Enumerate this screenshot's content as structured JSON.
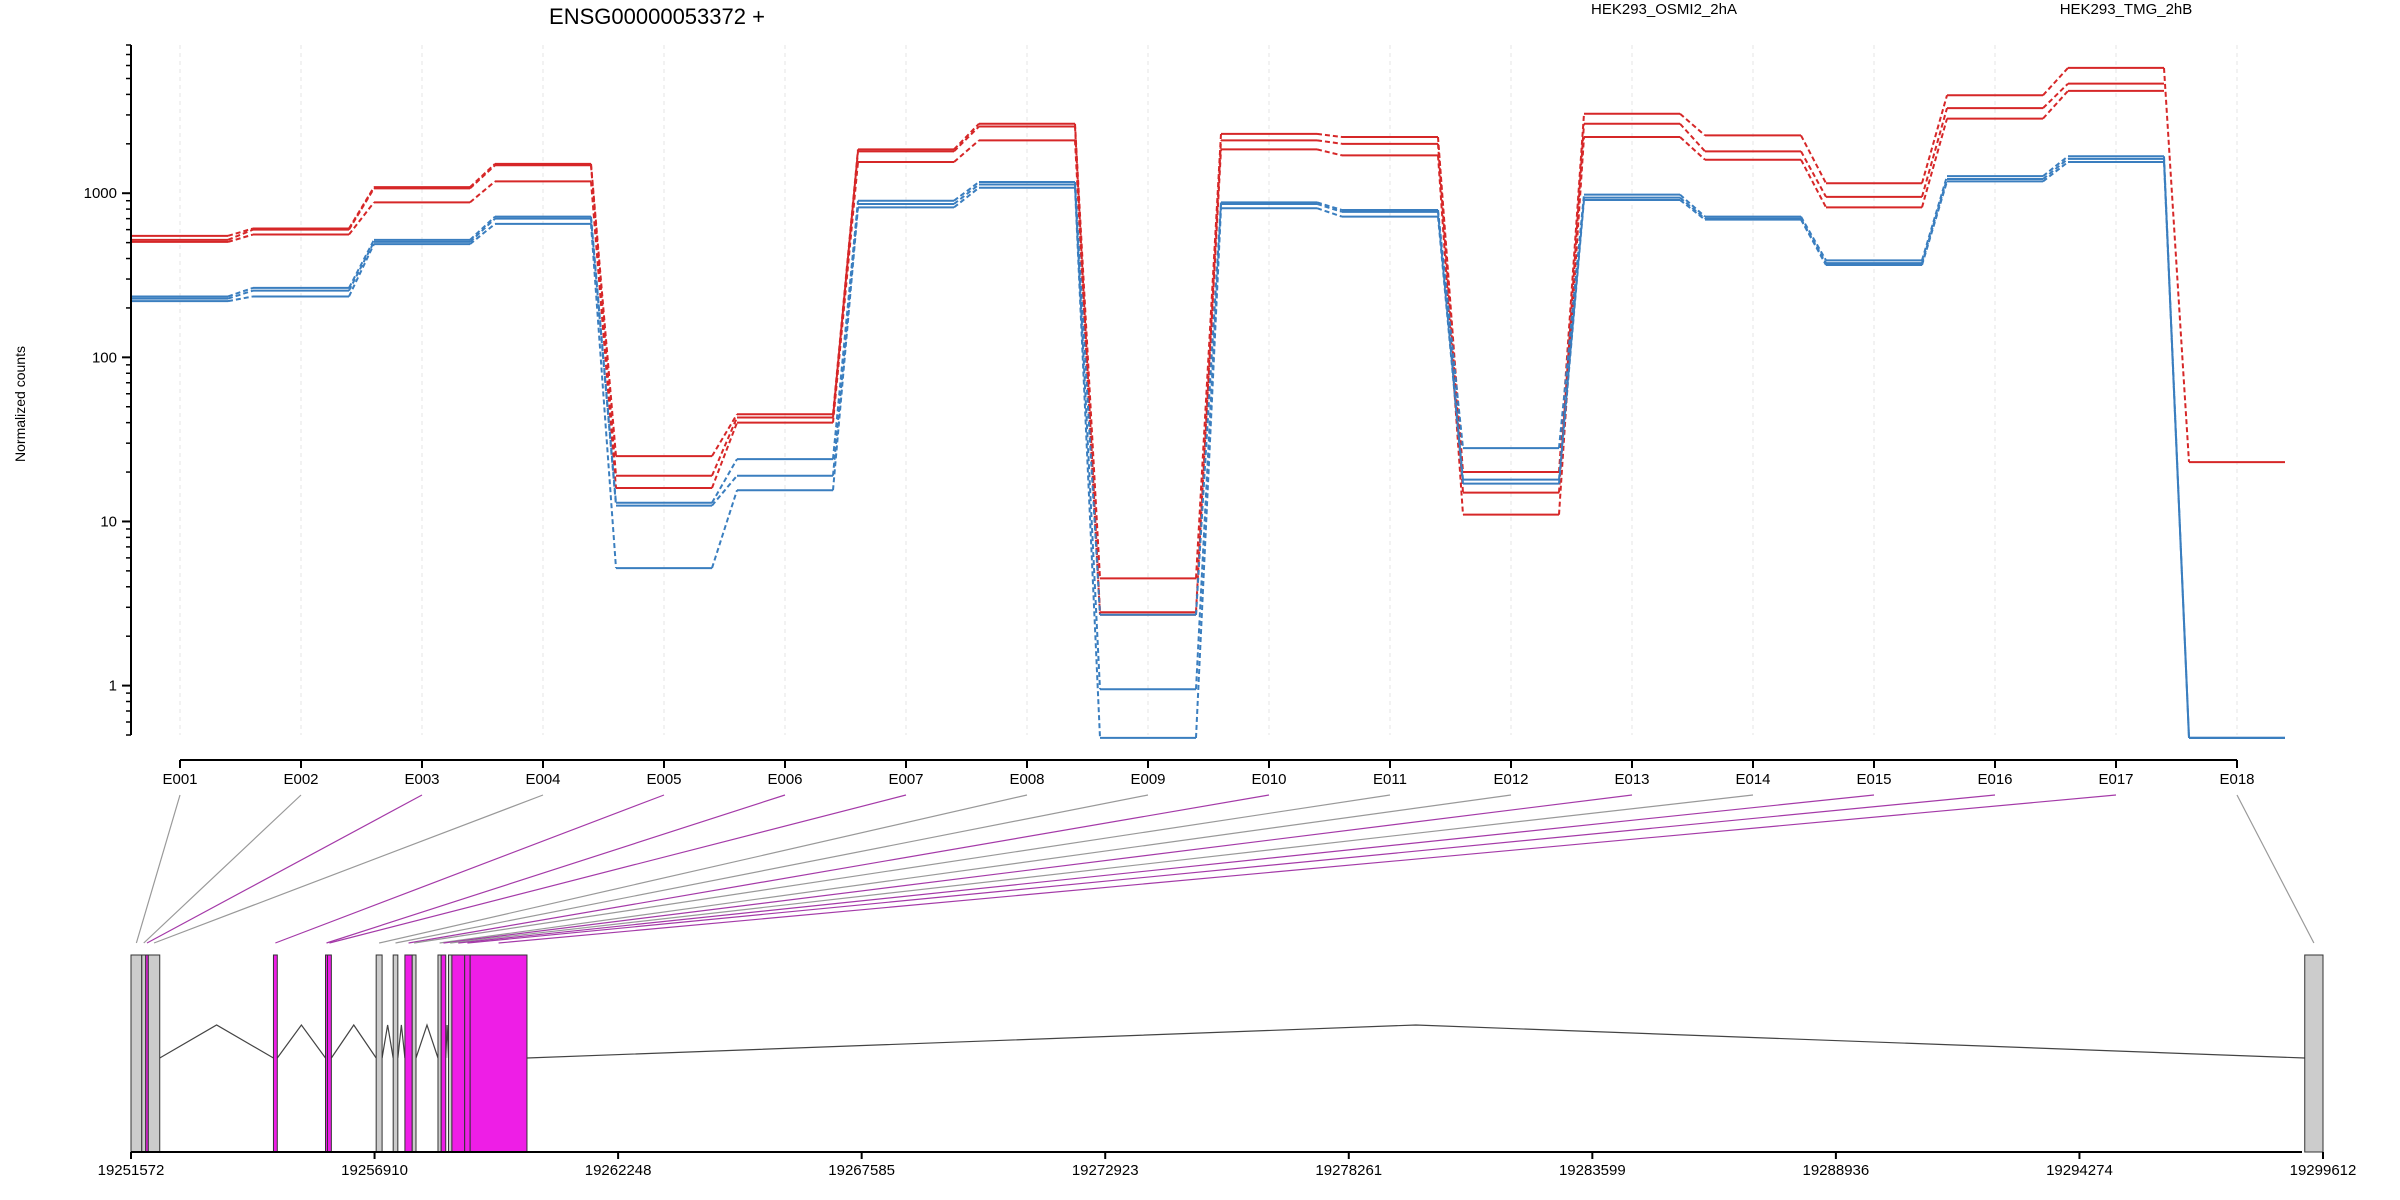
{
  "chart_data": {
    "type": "line",
    "title": "ENSG00000053372 +",
    "ylabel": "Normalized counts",
    "yscale": "log",
    "ylim": [
      0.5,
      8000
    ],
    "yticks": [
      {
        "value": 1,
        "label": "1"
      },
      {
        "value": 10,
        "label": "10"
      },
      {
        "value": 100,
        "label": "100"
      },
      {
        "value": 1000,
        "label": "1000"
      }
    ],
    "grid": "vertical",
    "categories": [
      "E001",
      "E002",
      "E003",
      "E004",
      "E005",
      "E006",
      "E007",
      "E008",
      "E009",
      "E010",
      "E011",
      "E012",
      "E013",
      "E014",
      "E015",
      "E016",
      "E017",
      "E018"
    ],
    "groups": [
      {
        "name": "HEK293_OSMI2_2hA",
        "color": "#d62728"
      },
      {
        "name": "HEK293_TMG_2hB",
        "color": "#3a7ebf"
      }
    ],
    "series": [
      {
        "group": "HEK293_OSMI2_2hA",
        "values": [
          550,
          610,
          1090,
          1510,
          25,
          45,
          1850,
          2650,
          4.5,
          2300,
          2200,
          20,
          3050,
          2250,
          1150,
          3950,
          5800,
          23
        ]
      },
      {
        "group": "HEK293_OSMI2_2hA",
        "values": [
          520,
          600,
          1070,
          1480,
          19,
          43,
          1800,
          2550,
          2.8,
          2100,
          2000,
          15,
          2650,
          1800,
          950,
          3300,
          4650,
          null
        ]
      },
      {
        "group": "HEK293_OSMI2_2hA",
        "values": [
          505,
          560,
          880,
          1180,
          16,
          40,
          1550,
          2100,
          2.7,
          1850,
          1700,
          11,
          2200,
          1600,
          820,
          2850,
          4200,
          null
        ]
      },
      {
        "group": "HEK293_TMG_2hB",
        "values": [
          235,
          265,
          520,
          720,
          13,
          24,
          900,
          1170,
          2.7,
          880,
          790,
          28,
          980,
          720,
          390,
          1270,
          1680,
          0.48
        ]
      },
      {
        "group": "HEK293_TMG_2hB",
        "values": [
          228,
          255,
          505,
          700,
          12.5,
          19,
          860,
          1130,
          0.95,
          860,
          770,
          18,
          940,
          700,
          375,
          1220,
          1620,
          0.48
        ]
      },
      {
        "group": "HEK293_TMG_2hB",
        "values": [
          220,
          235,
          490,
          650,
          5.2,
          15.5,
          820,
          1080,
          0.48,
          810,
          720,
          17,
          910,
          690,
          365,
          1180,
          1550,
          0.48
        ]
      }
    ]
  },
  "gene_model": {
    "coord_start": 19251572,
    "coord_end": 19299612,
    "coord_labels": [
      "19251572",
      "19256910",
      "19262248",
      "19267585",
      "19272923",
      "19278261",
      "19283599",
      "19288936",
      "19294274",
      "19299612"
    ],
    "highlight_color": "#ee1ee6",
    "exon_color": "#cccccc",
    "exons": [
      {
        "id": "E001",
        "start": 19251572,
        "end": 19251808,
        "highlight": false
      },
      {
        "id": "E002",
        "start": 19251808,
        "end": 19251895,
        "highlight": false
      },
      {
        "id": "E003",
        "start": 19251895,
        "end": 19251951,
        "highlight": true
      },
      {
        "id": "E004",
        "start": 19251951,
        "end": 19252202,
        "highlight": false
      },
      {
        "id": "E005",
        "start": 19254694,
        "end": 19254778,
        "highlight": true
      },
      {
        "id": "E006",
        "start": 19255835,
        "end": 19255878,
        "highlight": true
      },
      {
        "id": "E007",
        "start": 19255878,
        "end": 19255963,
        "highlight": true
      },
      {
        "id": "E008",
        "start": 19256945,
        "end": 19257075,
        "highlight": false
      },
      {
        "id": "E009",
        "start": 19257318,
        "end": 19257420,
        "highlight": false
      },
      {
        "id": "E010",
        "start": 19257575,
        "end": 19257735,
        "highlight": true
      },
      {
        "id": "E011",
        "start": 19257735,
        "end": 19257818,
        "highlight": false
      },
      {
        "id": "E012",
        "start": 19258300,
        "end": 19258370,
        "highlight": false
      },
      {
        "id": "E013",
        "start": 19258370,
        "end": 19258470,
        "highlight": true
      },
      {
        "id": "E014",
        "start": 19258530,
        "end": 19258605,
        "highlight": false
      },
      {
        "id": "E015",
        "start": 19258605,
        "end": 19258885,
        "highlight": true
      },
      {
        "id": "E016",
        "start": 19258885,
        "end": 19259005,
        "highlight": true
      },
      {
        "id": "E017",
        "start": 19259005,
        "end": 19260250,
        "highlight": true
      },
      {
        "id": "E018",
        "start": 19299212,
        "end": 19299612,
        "highlight": false
      }
    ],
    "introns": [
      [
        19252202,
        19254694
      ],
      [
        19254778,
        19255835
      ],
      [
        19255963,
        19256945
      ],
      [
        19257075,
        19257318
      ],
      [
        19257420,
        19257575
      ],
      [
        19257818,
        19258300
      ],
      [
        19258470,
        19258530
      ],
      [
        19260250,
        19299212
      ]
    ]
  }
}
